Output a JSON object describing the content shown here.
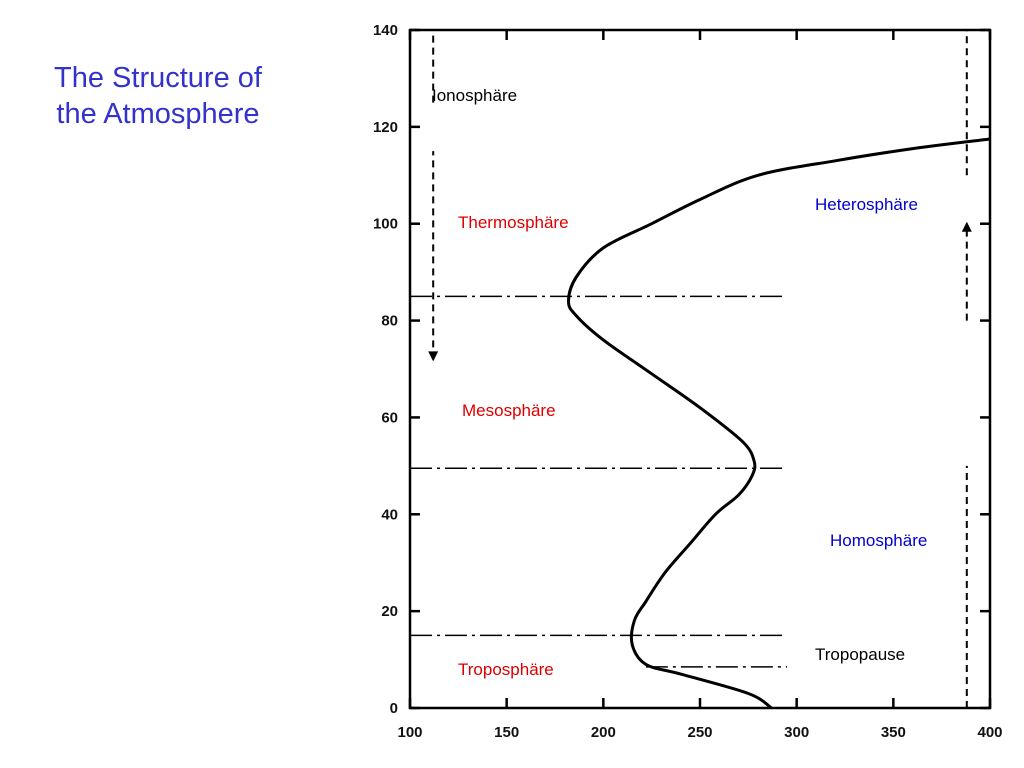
{
  "slide": {
    "title_line1": "The Structure of",
    "title_line2": "the Atmosphere"
  },
  "chart_data": {
    "type": "line",
    "title": "",
    "xlabel": "",
    "ylabel": "",
    "xlim": [
      100,
      400
    ],
    "ylim": [
      0,
      140
    ],
    "x_ticks": [
      100,
      150,
      200,
      250,
      300,
      350,
      400
    ],
    "y_ticks": [
      0,
      20,
      40,
      60,
      80,
      100,
      120,
      140
    ],
    "grid": false,
    "series": [
      {
        "values_xy": [
          [
            287,
            0
          ],
          [
            275,
            3
          ],
          [
            240,
            7
          ],
          [
            222,
            9
          ],
          [
            215,
            13
          ],
          [
            216,
            18
          ],
          [
            222,
            22
          ],
          [
            232,
            28
          ],
          [
            245,
            34
          ],
          [
            258,
            40
          ],
          [
            270,
            44
          ],
          [
            277,
            48
          ],
          [
            278,
            51
          ],
          [
            272,
            55
          ],
          [
            250,
            62
          ],
          [
            225,
            69
          ],
          [
            200,
            76
          ],
          [
            186,
            81
          ],
          [
            182,
            84
          ],
          [
            186,
            89
          ],
          [
            200,
            95
          ],
          [
            225,
            100
          ],
          [
            250,
            105
          ],
          [
            280,
            110
          ],
          [
            320,
            113
          ],
          [
            360,
            115.5
          ],
          [
            400,
            117.5
          ]
        ]
      }
    ],
    "boundaries": [
      {
        "altitude": 85,
        "x_end": 295
      },
      {
        "altitude": 49.5,
        "x_end": 295
      },
      {
        "altitude": 15,
        "x_end": 295
      },
      {
        "altitude": 8.5,
        "x_start": 222,
        "x_end": 295
      }
    ],
    "arrows": [
      {
        "x": 112,
        "from": 140,
        "to": 72,
        "gap": [
          115,
          125
        ]
      },
      {
        "x": 388,
        "from": 0,
        "to": 100,
        "gap": [
          50,
          80
        ]
      },
      {
        "x": 388,
        "from": 110,
        "to": 140
      }
    ],
    "annotations": [
      {
        "text": "Ionosphäre",
        "color": "#000000"
      },
      {
        "text": "Thermosphäre",
        "color": "#dd0000"
      },
      {
        "text": "Mesosphäre",
        "color": "#dd0000"
      },
      {
        "text": "Troposphäre",
        "color": "#dd0000"
      },
      {
        "text": "Heterosphäre",
        "color": "#0000cc"
      },
      {
        "text": "Homosphäre",
        "color": "#0000cc"
      },
      {
        "text": "Tropopause",
        "color": "#000000"
      }
    ]
  }
}
